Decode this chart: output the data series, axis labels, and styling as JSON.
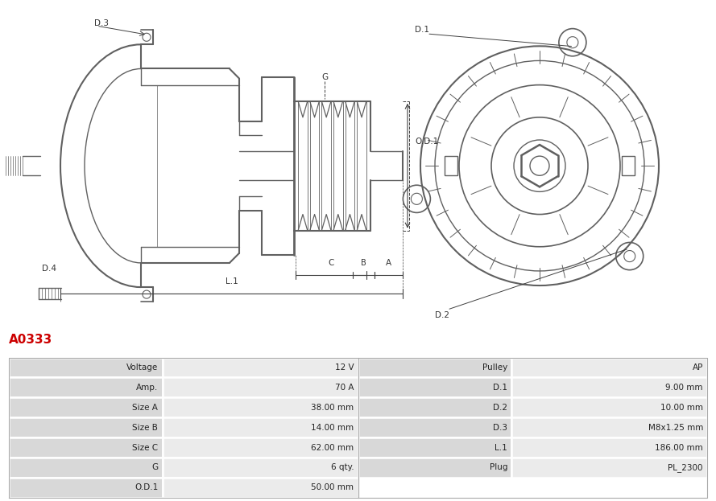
{
  "title": "A0333",
  "title_color": "#cc0000",
  "bg_color": "#ffffff",
  "table_rows": [
    [
      "Voltage",
      "12 V",
      "Pulley",
      "AP"
    ],
    [
      "Amp.",
      "70 A",
      "D.1",
      "9.00 mm"
    ],
    [
      "Size A",
      "38.00 mm",
      "D.2",
      "10.00 mm"
    ],
    [
      "Size B",
      "14.00 mm",
      "D.3",
      "M8x1.25 mm"
    ],
    [
      "Size C",
      "62.00 mm",
      "L.1",
      "186.00 mm"
    ],
    [
      "G",
      "6 qty.",
      "Plug",
      "PL_2300"
    ],
    [
      "O.D.1",
      "50.00 mm",
      "",
      ""
    ]
  ],
  "lc": "#606060",
  "dc": "#404040",
  "header_bg": "#d8d8d8",
  "row_bg": "#ebebeb",
  "cell_text_color": "#222222",
  "title_fontsize": 11,
  "cell_fontsize": 7.5
}
